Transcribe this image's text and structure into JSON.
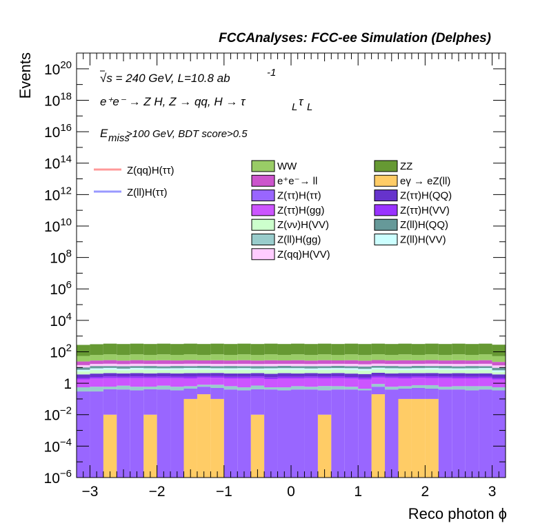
{
  "header": {
    "title": "FCCAnalyses: FCC-ee Simulation (Delphes)",
    "energy": "√s = 240 GeV, L=10.8 ab",
    "energy_exp": "-1",
    "process": "e⁺e⁻ → Z H, Z → qq, H → τ",
    "process_sub1": "L",
    "process_tau2": "τ",
    "process_sub2": "L",
    "cut_E": "E",
    "cut_sub": "miss",
    "cut_rest": ">100 GeV, BDT score>0.5"
  },
  "colors": {
    "WW": "#99cc66",
    "ZZ": "#669933",
    "ee_ll": "#cc55cc",
    "egamma_eZll": "#ffcc66",
    "Ztautau_Htautau": "#9966ff",
    "Ztautau_HQQ": "#6633cc",
    "Ztautau_Hgg": "#cc55ff",
    "Ztautau_HVV": "#9933ff",
    "Znunu_HVV": "#ccffcc",
    "Zll_HQQ": "#669999",
    "Zll_Hgg": "#99cccc",
    "Zll_HVV": "#ccffff",
    "Zqq_HVV": "#ffccff",
    "Zqq_Htautau_line": "#ff9999",
    "Zll_Htautau_line": "#9999ff"
  },
  "chart_data": {
    "type": "bar",
    "stacked": true,
    "title": "FCCAnalyses: FCC-ee Simulation (Delphes)",
    "xlabel": "Reco photon ϕ",
    "ylabel": "Events",
    "xlim": [
      -3.2,
      3.2
    ],
    "ylim": [
      1e-06,
      1e+21
    ],
    "log_y": true,
    "x_ticks": [
      "−3",
      "−2",
      "−1",
      "0",
      "1",
      "2",
      "3"
    ],
    "y_ticks": [
      {
        "base": "10",
        "exp": "−6"
      },
      {
        "base": "10",
        "exp": "−4"
      },
      {
        "base": "10",
        "exp": "−2"
      },
      {
        "base": "1",
        "exp": ""
      },
      {
        "base": "10",
        "exp": "2"
      },
      {
        "base": "10",
        "exp": "4"
      },
      {
        "base": "10",
        "exp": "6"
      },
      {
        "base": "10",
        "exp": "8"
      },
      {
        "base": "10",
        "exp": "10"
      },
      {
        "base": "10",
        "exp": "12"
      },
      {
        "base": "10",
        "exp": "14"
      },
      {
        "base": "10",
        "exp": "16"
      },
      {
        "base": "10",
        "exp": "18"
      },
      {
        "base": "10",
        "exp": "20"
      }
    ],
    "bin_edges": [
      -3.2,
      -3.0,
      -2.8,
      -2.6,
      -2.4,
      -2.2,
      -2.0,
      -1.8,
      -1.6,
      -1.4,
      -1.2,
      -1.0,
      -0.8,
      -0.6,
      -0.4,
      -0.2,
      0.0,
      0.2,
      0.4,
      0.6,
      0.8,
      1.0,
      1.2,
      1.4,
      1.6,
      1.8,
      2.0,
      2.2,
      2.4,
      2.6,
      2.8,
      3.0,
      3.2
    ],
    "legend_position": "top-center",
    "series": [
      {
        "name": "eγ → eZ(ll)",
        "key": "egamma_eZll",
        "values": [
          0,
          0,
          0.01,
          0,
          0,
          0.01,
          0,
          0,
          0.1,
          0.2,
          0.1,
          0,
          0,
          0.01,
          0,
          0,
          0,
          0,
          0.01,
          0,
          0,
          0,
          0.2,
          0,
          0.1,
          0.1,
          0.1,
          0,
          0,
          0,
          0,
          0
        ]
      },
      {
        "name": "Z(ττ)H(ττ)",
        "key": "Ztautau_Htautau",
        "values": [
          0.3,
          0.3,
          0.4,
          0.4,
          0.35,
          0.4,
          0.4,
          0.35,
          0.35,
          0.4,
          0.4,
          0.4,
          0.35,
          0.4,
          0.4,
          0.35,
          0.4,
          0.4,
          0.35,
          0.4,
          0.4,
          0.35,
          0.4,
          0.4,
          0.35,
          0.4,
          0.35,
          0.4,
          0.4,
          0.35,
          0.4,
          0.35
        ]
      },
      {
        "name": "Z(ll)H(gg)",
        "key": "Zll_Hgg",
        "values": [
          0.25,
          0.3,
          0.2,
          0.3,
          0.25,
          0.2,
          0.3,
          0.25,
          0.2,
          0.2,
          0.3,
          0.25,
          0.2,
          0.3,
          0.15,
          0.2,
          0.25,
          0.2,
          0.3,
          0.25,
          0.2,
          0.1,
          0.3,
          0.2,
          0.2,
          0.25,
          0.3,
          0.2,
          0.25,
          0.3,
          0.25,
          0.2
        ]
      },
      {
        "name": "Z(ττ)H(gg)",
        "key": "Ztautau_Hgg",
        "values": [
          1.2,
          1.4,
          1.5,
          1.4,
          1.5,
          1.5,
          1.4,
          1.5,
          1.4,
          1.5,
          1.4,
          1.4,
          1.5,
          1.4,
          1.3,
          1.5,
          1.4,
          1.5,
          1.4,
          1.5,
          1.4,
          1.3,
          1.4,
          1.5,
          1.4,
          1.5,
          1.4,
          1.5,
          1.4,
          1.4,
          1.5,
          1.2
        ]
      },
      {
        "name": "Z(ττ)H(VV)",
        "key": "Ztautau_HVV",
        "values": [
          0.4,
          0.5,
          0.6,
          0.5,
          0.6,
          0.5,
          0.6,
          0.5,
          0.6,
          0.5,
          0.6,
          0.5,
          0.5,
          0.6,
          0.5,
          0.6,
          0.5,
          0.6,
          0.5,
          0.6,
          0.5,
          0.5,
          0.6,
          0.5,
          0.6,
          0.5,
          0.6,
          0.5,
          0.6,
          0.5,
          0.5,
          0.4
        ]
      },
      {
        "name": "Z(ττ)H(QQ)",
        "key": "Ztautau_HQQ",
        "values": [
          1.5,
          1.6,
          1.7,
          1.6,
          1.7,
          1.6,
          1.7,
          1.6,
          1.7,
          1.6,
          1.7,
          1.6,
          1.6,
          1.7,
          1.6,
          1.7,
          1.6,
          1.7,
          1.6,
          1.7,
          1.6,
          1.6,
          1.7,
          1.6,
          1.7,
          1.6,
          1.7,
          1.6,
          1.7,
          1.6,
          1.6,
          1.5
        ]
      },
      {
        "name": "Z(νν)H(VV)",
        "key": "Znunu_HVV",
        "values": [
          2,
          3,
          3,
          2.5,
          3,
          3,
          2.5,
          3,
          3,
          3,
          2.5,
          3,
          3,
          2.5,
          3,
          3,
          3,
          2.5,
          3,
          3,
          3,
          2.5,
          3,
          3,
          2.5,
          3,
          3,
          3,
          2.5,
          3,
          3,
          1.5
        ]
      },
      {
        "name": "Z(ll)H(VV)",
        "key": "Zll_HVV",
        "values": [
          1.5,
          1.8,
          2,
          1.8,
          2,
          1.8,
          2,
          1.8,
          2,
          1.8,
          2,
          1.8,
          2,
          1.8,
          2,
          1.8,
          2,
          1.8,
          2,
          1.8,
          2,
          1.8,
          2,
          1.8,
          2,
          1.8,
          2,
          1.8,
          2,
          1.8,
          2,
          1.5
        ]
      },
      {
        "name": "Z(ll)H(QQ)",
        "key": "Zll_HQQ",
        "values": [
          3,
          3.5,
          3,
          3.5,
          3,
          3.5,
          3,
          3.5,
          3,
          3.5,
          3,
          3.5,
          3,
          3.5,
          3,
          3.5,
          3,
          3.5,
          3,
          3.5,
          3,
          3.5,
          3,
          3.5,
          3,
          3.5,
          3,
          3.5,
          3,
          3.5,
          3,
          3
        ]
      },
      {
        "name": "Z(qq)H(VV)",
        "key": "Zqq_HVV",
        "values": [
          4,
          4.5,
          5,
          4.5,
          5,
          4.5,
          5,
          4.5,
          5,
          4.5,
          5,
          4.5,
          5,
          4.5,
          5,
          4.5,
          5,
          4.5,
          5,
          4.5,
          5,
          4.5,
          5,
          4.5,
          5,
          4.5,
          5,
          4.5,
          5,
          4.5,
          5,
          4
        ]
      },
      {
        "name": "e⁺e⁻→ ll",
        "key": "ee_ll",
        "values": [
          10,
          11,
          12,
          11,
          12,
          11,
          12,
          11,
          12,
          11,
          12,
          11,
          12,
          11,
          12,
          11,
          12,
          11,
          12,
          11,
          12,
          11,
          12,
          11,
          12,
          11,
          12,
          11,
          12,
          11,
          12,
          9
        ]
      },
      {
        "name": "WW",
        "key": "WW",
        "values": [
          30,
          35,
          40,
          35,
          40,
          35,
          40,
          35,
          40,
          35,
          40,
          35,
          40,
          35,
          40,
          35,
          40,
          35,
          40,
          35,
          40,
          35,
          40,
          35,
          40,
          35,
          40,
          35,
          40,
          35,
          40,
          30
        ]
      },
      {
        "name": "ZZ",
        "key": "ZZ",
        "values": [
          220,
          240,
          260,
          250,
          260,
          250,
          260,
          250,
          260,
          250,
          260,
          250,
          260,
          250,
          260,
          250,
          260,
          250,
          260,
          250,
          260,
          250,
          260,
          250,
          260,
          250,
          260,
          250,
          260,
          250,
          260,
          230
        ]
      }
    ],
    "overlays": [
      {
        "name": "Z(qq)H(ττ)",
        "key": "Zqq_Htautau_line",
        "values": []
      },
      {
        "name": "Z(ll)H(ττ)",
        "key": "Zll_Htautau_line",
        "values": []
      }
    ],
    "legend_columns": [
      [
        "WW",
        "e⁺e⁻→ ll",
        "Z(ττ)H(ττ)",
        "Z(ττ)H(gg)",
        "Z(νν)H(VV)",
        "Z(ll)H(gg)",
        "Z(qq)H(VV)"
      ],
      [
        "ZZ",
        "eγ → eZ(ll)",
        "Z(ττ)H(QQ)",
        "Z(ττ)H(VV)",
        "Z(ll)H(QQ)",
        "Z(ll)H(VV)"
      ]
    ]
  }
}
